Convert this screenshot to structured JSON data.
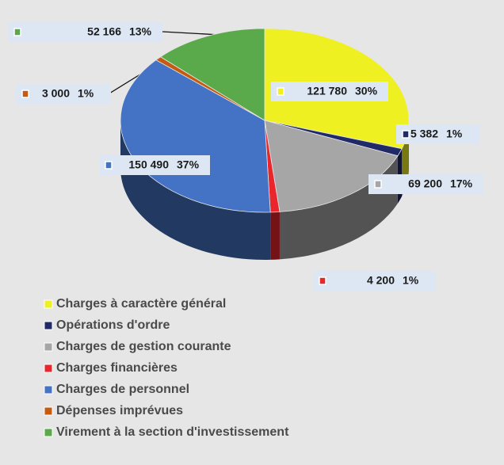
{
  "chart_data": {
    "type": "pie",
    "categories": [
      "Charges à caractère général",
      "Opérations d'ordre",
      "Charges de gestion courante",
      "Charges financières",
      "Charges de personnel",
      "Dépenses imprévues",
      "Virement à la section d'investissement"
    ],
    "values": [
      121780,
      5382,
      69200,
      4200,
      150490,
      3000,
      52166
    ],
    "value_labels": [
      "121 780",
      "5 382",
      "69 200",
      "4 200",
      "150 490",
      "3 000",
      "52 166"
    ],
    "percent_labels": [
      "30%",
      "1%",
      "17%",
      "1%",
      "37%",
      "1%",
      "13%"
    ],
    "colors": [
      "#eef022",
      "#1f2a66",
      "#a6a6a6",
      "#e8262b",
      "#4472c4",
      "#c55a11",
      "#5aaa4c"
    ],
    "legend": "bottom-left"
  }
}
